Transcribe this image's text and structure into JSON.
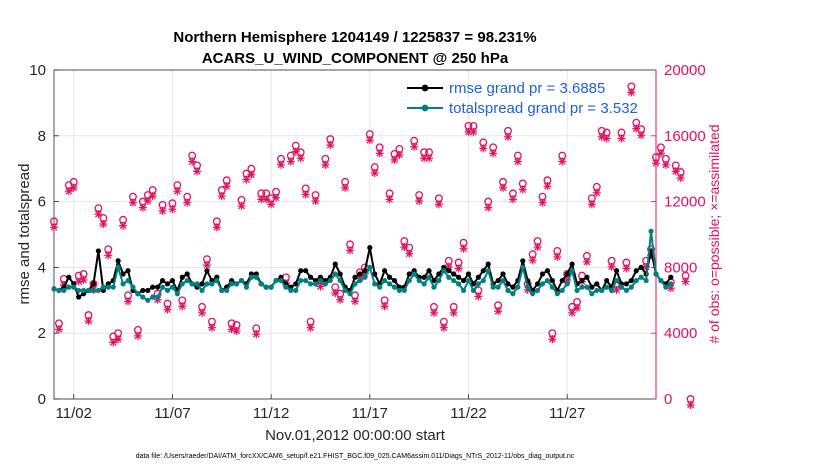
{
  "chart_data": {
    "type": "line",
    "title": "Northern Hemisphere 1204149 / 1225837 = 98.231%",
    "subtitle": "ACARS_U_WIND_COMPONENT @ 250 hPa",
    "xlabel": "Nov.01,2012 00:00:00 start",
    "ylabel": "rmse and totalspread",
    "ylabel_right": "# of obs: o=possible; ×=assimilated",
    "footnote": "data file: /Users/raeder/DAI/ATM_forcXX/CAM6_setup/f.e21.FHIST_BGC.f09_025.CAM6assim.011/Diags_NTrS_2012-11/obs_diag_output.nc",
    "xlim": [
      0,
      30.5
    ],
    "ylim": [
      0,
      10
    ],
    "ylim_right": [
      0,
      20000
    ],
    "x_tick_values": [
      1,
      6,
      11,
      16,
      21,
      26
    ],
    "x_tick_labels": [
      "11/02",
      "11/07",
      "11/12",
      "11/17",
      "11/22",
      "11/27"
    ],
    "y_tick_labels": [
      "0",
      "2",
      "4",
      "6",
      "8",
      "10"
    ],
    "y_right_tick_labels": [
      "0",
      "4000",
      "8000",
      "12000",
      "16000",
      "20000"
    ],
    "legend": [
      "rmse grand pr = 3.6885",
      "totalspread grand pr = 3.532"
    ],
    "colors": {
      "rmse": "#000000",
      "totalspread": "#008080",
      "obs": "#e0115f",
      "grid": "#e6e6e6"
    },
    "series": [
      {
        "name": "rmse",
        "values": [
          3.35,
          3.3,
          3.4,
          3.7,
          3.5,
          3.1,
          3.2,
          3.3,
          3.5,
          4.5,
          3.3,
          3.5,
          3.6,
          4.2,
          3.8,
          3.9,
          3.3,
          3.2,
          3.3,
          3.3,
          3.4,
          3.4,
          3.6,
          3.5,
          3.6,
          3.3,
          3.7,
          3.8,
          3.5,
          3.4,
          3.5,
          3.9,
          3.6,
          3.7,
          3.3,
          3.4,
          3.6,
          3.5,
          3.6,
          3.5,
          3.8,
          3.8,
          3.5,
          3.4,
          3.4,
          3.6,
          3.7,
          3.5,
          3.4,
          3.5,
          3.9,
          3.9,
          3.7,
          3.6,
          3.7,
          3.6,
          3.7,
          4.1,
          3.8,
          3.4,
          3.3,
          3.7,
          3.8,
          3.9,
          4.6,
          3.8,
          3.5,
          3.9,
          3.7,
          3.6,
          3.4,
          3.4,
          3.8,
          3.9,
          3.7,
          3.7,
          3.9,
          3.6,
          3.8,
          4.0,
          3.9,
          3.8,
          3.7,
          3.6,
          3.8,
          3.5,
          3.7,
          3.9,
          4.1,
          3.5,
          3.6,
          3.8,
          3.5,
          3.4,
          3.6,
          4.2,
          3.6,
          3.3,
          3.5,
          3.8,
          3.9,
          3.6,
          3.3,
          3.6,
          3.8,
          4.1,
          3.5,
          3.6,
          3.7,
          3.4,
          3.5,
          3.3,
          3.6,
          3.4,
          3.9,
          3.5,
          3.5,
          3.6,
          3.9,
          4.0,
          3.8,
          4.5,
          3.8,
          3.6,
          3.5,
          3.7
        ]
      },
      {
        "name": "totalspread",
        "values": [
          3.35,
          3.3,
          3.3,
          3.4,
          3.4,
          3.3,
          3.3,
          3.3,
          3.3,
          3.3,
          3.4,
          3.4,
          3.4,
          4.0,
          3.5,
          3.6,
          3.4,
          3.2,
          3.1,
          3.0,
          3.1,
          3.1,
          3.4,
          3.3,
          3.4,
          3.2,
          3.5,
          3.6,
          3.5,
          3.5,
          3.3,
          3.5,
          3.5,
          3.6,
          3.3,
          3.3,
          3.5,
          3.5,
          3.6,
          3.4,
          3.7,
          3.7,
          3.5,
          3.4,
          3.4,
          3.6,
          3.6,
          3.4,
          3.3,
          3.3,
          3.6,
          3.6,
          3.5,
          3.5,
          3.6,
          3.5,
          3.6,
          3.8,
          3.6,
          3.3,
          3.2,
          3.5,
          3.6,
          3.7,
          4.0,
          3.5,
          3.4,
          3.6,
          3.5,
          3.4,
          3.3,
          3.3,
          3.6,
          3.8,
          3.6,
          3.5,
          3.7,
          3.4,
          3.6,
          3.9,
          3.7,
          3.6,
          3.5,
          3.3,
          3.6,
          3.3,
          3.5,
          3.6,
          3.9,
          3.4,
          3.4,
          3.6,
          3.3,
          3.2,
          3.4,
          4.0,
          3.4,
          3.2,
          3.3,
          3.5,
          3.6,
          3.4,
          3.2,
          3.3,
          3.5,
          3.9,
          3.3,
          3.4,
          3.4,
          3.2,
          3.3,
          3.3,
          3.4,
          3.3,
          3.6,
          3.4,
          3.3,
          3.4,
          3.6,
          3.7,
          3.6,
          5.1,
          3.8,
          3.6,
          3.4,
          3.5
        ]
      },
      {
        "name": "obs_count",
        "axis": "right",
        "values": [
          10800,
          4600,
          7300,
          13000,
          13200,
          7500,
          7600,
          5100,
          7000,
          11600,
          11000,
          9100,
          3800,
          4000,
          10900,
          6300,
          12300,
          4200,
          12000,
          12400,
          12700,
          6400,
          11800,
          5800,
          11900,
          13000,
          6000,
          12300,
          14800,
          14200,
          5600,
          8500,
          4700,
          10800,
          12700,
          13300,
          4600,
          4500,
          12100,
          13700,
          14000,
          4300,
          12500,
          12500,
          12200,
          12600,
          14600,
          7400,
          14800,
          15400,
          15000,
          12800,
          4700,
          12400,
          7200,
          14600,
          15800,
          6800,
          6400,
          13200,
          9400,
          6300,
          7700,
          8000,
          16100,
          14100,
          15300,
          6000,
          12500,
          14900,
          15200,
          9600,
          9200,
          15700,
          12400,
          15000,
          15000,
          5600,
          12200,
          4700,
          8400,
          5600,
          8300,
          9500,
          16600,
          16600,
          6600,
          15600,
          12000,
          15300,
          5700,
          13200,
          16300,
          12500,
          14800,
          13100,
          7000,
          8800,
          9600,
          12300,
          13300,
          4000,
          9000,
          14800,
          7600,
          5600,
          5900,
          7500,
          8700,
          12200,
          12900,
          16300,
          16200,
          8400,
          7000,
          16200,
          8300,
          19000,
          16800,
          16400,
          8400,
          9100,
          14700,
          15300,
          14600,
          7100,
          14200,
          13800,
          7500,
          0
        ]
      }
    ]
  }
}
